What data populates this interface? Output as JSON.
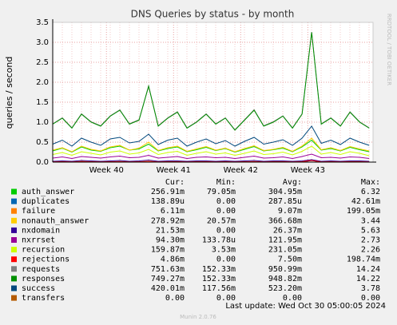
{
  "chart_data": {
    "type": "line",
    "title": "DNS Queries by status - by month",
    "y_label": "queries / second",
    "watermark": "RRDTOOL / TOBI OETIKER",
    "last_update": "Last update: Wed Oct 30 05:00:05 2024",
    "footer": "Munin 2.0.76",
    "legend_columns": [
      "Cur:",
      "Min:",
      "Avg:",
      "Max:"
    ],
    "xlim": [
      0,
      33.4
    ],
    "xticks": [
      {
        "value": 5.6,
        "label": "Week 40"
      },
      {
        "value": 12.6,
        "label": "Week 41"
      },
      {
        "value": 19.6,
        "label": "Week 42"
      },
      {
        "value": 26.6,
        "label": "Week 43"
      }
    ],
    "ylim": [
      0,
      3.5
    ],
    "yticks": [
      {
        "value": 0,
        "label": "0.0"
      },
      0.5,
      {
        "value": 1,
        "label": "1.0"
      },
      1.5,
      {
        "value": 2,
        "label": "2.0"
      },
      2.5,
      {
        "value": 3,
        "label": "3.0"
      },
      3.5
    ],
    "grid": true,
    "x": [
      0,
      1,
      2,
      3,
      4,
      5,
      6,
      7,
      8,
      9,
      10,
      11,
      12,
      13,
      14,
      15,
      16,
      17,
      18,
      19,
      20,
      21,
      22,
      23,
      24,
      25,
      26,
      27,
      28,
      29,
      30,
      31,
      32,
      33
    ],
    "series": [
      {
        "name": "auth_answer",
        "color": "#00cc00",
        "cur": "256.91m",
        "min": "79.05m",
        "avg": "304.95m",
        "max": "6.32",
        "values": [
          0.28,
          0.35,
          0.25,
          0.38,
          0.3,
          0.27,
          0.36,
          0.4,
          0.3,
          0.33,
          0.45,
          0.28,
          0.34,
          0.38,
          0.26,
          0.31,
          0.37,
          0.29,
          0.34,
          0.25,
          0.32,
          0.39,
          0.28,
          0.31,
          0.35,
          0.26,
          0.38,
          0.55,
          0.3,
          0.34,
          0.28,
          0.37,
          0.31,
          0.26
        ]
      },
      {
        "name": "duplicates",
        "color": "#0066b3",
        "cur": "138.89u",
        "min": "0.00",
        "avg": "287.85u",
        "max": "42.61m",
        "values": [
          0,
          0,
          0,
          0,
          0,
          0,
          0,
          0,
          0,
          0,
          0,
          0,
          0,
          0,
          0,
          0,
          0,
          0,
          0,
          0,
          0,
          0,
          0,
          0,
          0,
          0,
          0,
          0.04,
          0,
          0,
          0,
          0,
          0,
          0
        ]
      },
      {
        "name": "failure",
        "color": "#ff8000",
        "cur": "6.11m",
        "min": "0.00",
        "avg": "9.07m",
        "max": "199.05m",
        "values": [
          0.01,
          0.01,
          0.005,
          0.02,
          0.01,
          0.01,
          0.01,
          0.015,
          0.01,
          0.01,
          0.02,
          0.01,
          0.01,
          0.01,
          0.005,
          0.01,
          0.01,
          0.01,
          0.01,
          0.005,
          0.01,
          0.015,
          0.01,
          0.01,
          0.01,
          0.005,
          0.01,
          0.05,
          0.01,
          0.01,
          0.01,
          0.01,
          0.01,
          0.006
        ]
      },
      {
        "name": "nonauth_answer",
        "color": "#ffcc00",
        "cur": "278.92m",
        "min": "20.57m",
        "avg": "366.68m",
        "max": "3.44",
        "values": [
          0.3,
          0.36,
          0.26,
          0.4,
          0.32,
          0.28,
          0.38,
          0.42,
          0.3,
          0.35,
          0.5,
          0.29,
          0.36,
          0.4,
          0.27,
          0.33,
          0.39,
          0.3,
          0.35,
          0.26,
          0.34,
          0.41,
          0.29,
          0.32,
          0.37,
          0.27,
          0.4,
          0.6,
          0.31,
          0.36,
          0.29,
          0.39,
          0.33,
          0.28
        ]
      },
      {
        "name": "nxdomain",
        "color": "#330099",
        "cur": "21.53m",
        "min": "0.00",
        "avg": "26.37m",
        "max": "5.63",
        "values": [
          0.02,
          0.03,
          0.02,
          0.04,
          0.03,
          0.02,
          0.03,
          0.04,
          0.02,
          0.03,
          0.05,
          0.02,
          0.03,
          0.03,
          0.02,
          0.03,
          0.03,
          0.02,
          0.03,
          0.02,
          0.03,
          0.04,
          0.02,
          0.03,
          0.03,
          0.02,
          0.03,
          0.06,
          0.02,
          0.03,
          0.02,
          0.03,
          0.03,
          0.02
        ]
      },
      {
        "name": "nxrrset",
        "color": "#990099",
        "cur": "94.30m",
        "min": "133.78u",
        "avg": "121.95m",
        "max": "2.73",
        "values": [
          0.1,
          0.13,
          0.09,
          0.14,
          0.12,
          0.1,
          0.13,
          0.15,
          0.11,
          0.12,
          0.17,
          0.1,
          0.12,
          0.14,
          0.09,
          0.12,
          0.13,
          0.11,
          0.12,
          0.09,
          0.12,
          0.15,
          0.1,
          0.11,
          0.13,
          0.09,
          0.14,
          0.2,
          0.11,
          0.12,
          0.1,
          0.13,
          0.12,
          0.09
        ]
      },
      {
        "name": "recursion",
        "color": "#ccff00",
        "cur": "159.87m",
        "min": "3.53m",
        "avg": "231.05m",
        "max": "2.26",
        "values": [
          0.19,
          0.24,
          0.17,
          0.26,
          0.22,
          0.18,
          0.25,
          0.28,
          0.2,
          0.23,
          0.32,
          0.19,
          0.24,
          0.27,
          0.17,
          0.22,
          0.26,
          0.2,
          0.23,
          0.17,
          0.22,
          0.28,
          0.19,
          0.21,
          0.25,
          0.18,
          0.27,
          0.4,
          0.2,
          0.24,
          0.19,
          0.26,
          0.22,
          0.16
        ]
      },
      {
        "name": "rejections",
        "color": "#ff0000",
        "cur": "4.86m",
        "min": "0.00",
        "avg": "7.50m",
        "max": "198.74m",
        "values": [
          0.005,
          0.01,
          0.005,
          0.01,
          0.008,
          0.005,
          0.01,
          0.01,
          0.005,
          0.008,
          0.015,
          0.005,
          0.008,
          0.01,
          0.005,
          0.008,
          0.01,
          0.005,
          0.008,
          0.005,
          0.008,
          0.01,
          0.005,
          0.008,
          0.01,
          0.005,
          0.01,
          0.04,
          0.005,
          0.008,
          0.005,
          0.01,
          0.008,
          0.005
        ]
      },
      {
        "name": "requests",
        "color": "#808080",
        "cur": "751.63m",
        "min": "152.33m",
        "avg": "950.99m",
        "max": "14.24",
        "values": [
          0.96,
          1.11,
          0.86,
          1.21,
          1.01,
          0.91,
          1.16,
          1.31,
          0.96,
          1.06,
          1.91,
          0.91,
          1.11,
          1.26,
          0.86,
          1.01,
          1.21,
          0.96,
          1.11,
          0.81,
          1.06,
          1.31,
          0.91,
          1.01,
          1.16,
          0.86,
          1.21,
          3.26,
          0.96,
          1.11,
          0.91,
          1.26,
          1.01,
          0.86
        ]
      },
      {
        "name": "responses",
        "color": "#008f00",
        "cur": "749.27m",
        "min": "152.33m",
        "avg": "948.82m",
        "max": "14.22",
        "values": [
          0.95,
          1.1,
          0.85,
          1.2,
          1.0,
          0.9,
          1.15,
          1.3,
          0.95,
          1.05,
          1.9,
          0.9,
          1.1,
          1.25,
          0.85,
          1.0,
          1.2,
          0.95,
          1.1,
          0.8,
          1.05,
          1.3,
          0.9,
          1.0,
          1.15,
          0.85,
          1.2,
          3.25,
          0.95,
          1.1,
          0.9,
          1.25,
          1.0,
          0.85
        ]
      },
      {
        "name": "success",
        "color": "#00487d",
        "cur": "420.01m",
        "min": "117.56m",
        "avg": "523.20m",
        "max": "3.78",
        "values": [
          0.45,
          0.55,
          0.4,
          0.6,
          0.5,
          0.42,
          0.58,
          0.62,
          0.48,
          0.52,
          0.7,
          0.44,
          0.55,
          0.6,
          0.4,
          0.5,
          0.58,
          0.46,
          0.54,
          0.4,
          0.52,
          0.62,
          0.45,
          0.5,
          0.56,
          0.42,
          0.6,
          0.9,
          0.47,
          0.55,
          0.44,
          0.6,
          0.5,
          0.42
        ]
      },
      {
        "name": "transfers",
        "color": "#b35a00",
        "cur": "0.00",
        "min": "0.00",
        "avg": "0.00",
        "max": "0.00",
        "values": [
          0,
          0,
          0,
          0,
          0,
          0,
          0,
          0,
          0,
          0,
          0,
          0,
          0,
          0,
          0,
          0,
          0,
          0,
          0,
          0,
          0,
          0,
          0,
          0,
          0,
          0,
          0,
          0,
          0,
          0,
          0,
          0,
          0,
          0
        ]
      }
    ]
  }
}
